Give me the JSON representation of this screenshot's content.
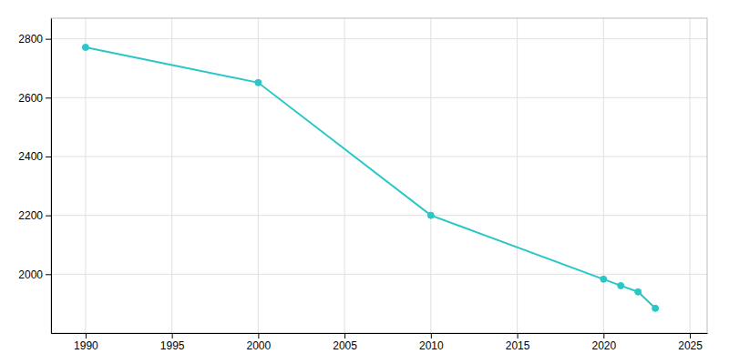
{
  "chart_data": {
    "type": "line",
    "x": [
      1990,
      2000,
      2010,
      2020,
      2021,
      2022,
      2023
    ],
    "values": [
      2771,
      2651,
      2200,
      1983,
      1961,
      1940,
      1884
    ],
    "color": "#29C7C7",
    "marker": "circle",
    "xlim": [
      1988,
      2026
    ],
    "ylim": [
      1800,
      2870
    ],
    "xticks": [
      1990,
      1995,
      2000,
      2005,
      2010,
      2015,
      2020,
      2025
    ],
    "yticks": [
      2000,
      2200,
      2400,
      2600,
      2800
    ],
    "grid": true
  }
}
